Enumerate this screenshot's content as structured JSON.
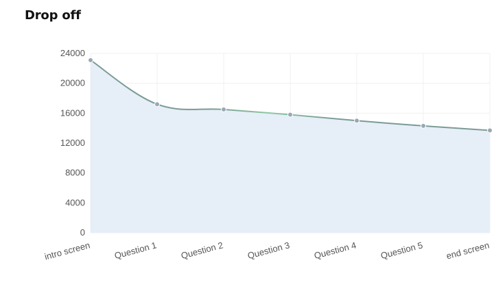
{
  "page": {
    "title": "Drop off"
  },
  "chart_data": {
    "type": "area",
    "title": "Drop off",
    "xlabel": "",
    "ylabel": "",
    "categories": [
      "intro screen",
      "Question 1",
      "Question 2",
      "Question 3",
      "Question 4",
      "Question 5",
      "end screen"
    ],
    "ylim": [
      0,
      24000
    ],
    "yticks": [
      0,
      4000,
      8000,
      12000,
      16000,
      20000,
      24000
    ],
    "series": [
      {
        "values": [
          23100,
          17200,
          16500,
          15800,
          15000,
          14300,
          13700
        ]
      }
    ],
    "colors": {
      "line": "#7a9b94",
      "line_mid": "#8cc8a4",
      "fill": "#e6eef7",
      "grid": "#eef0f3",
      "point": "#9aa8b4"
    },
    "grid": true,
    "legend": "none"
  }
}
